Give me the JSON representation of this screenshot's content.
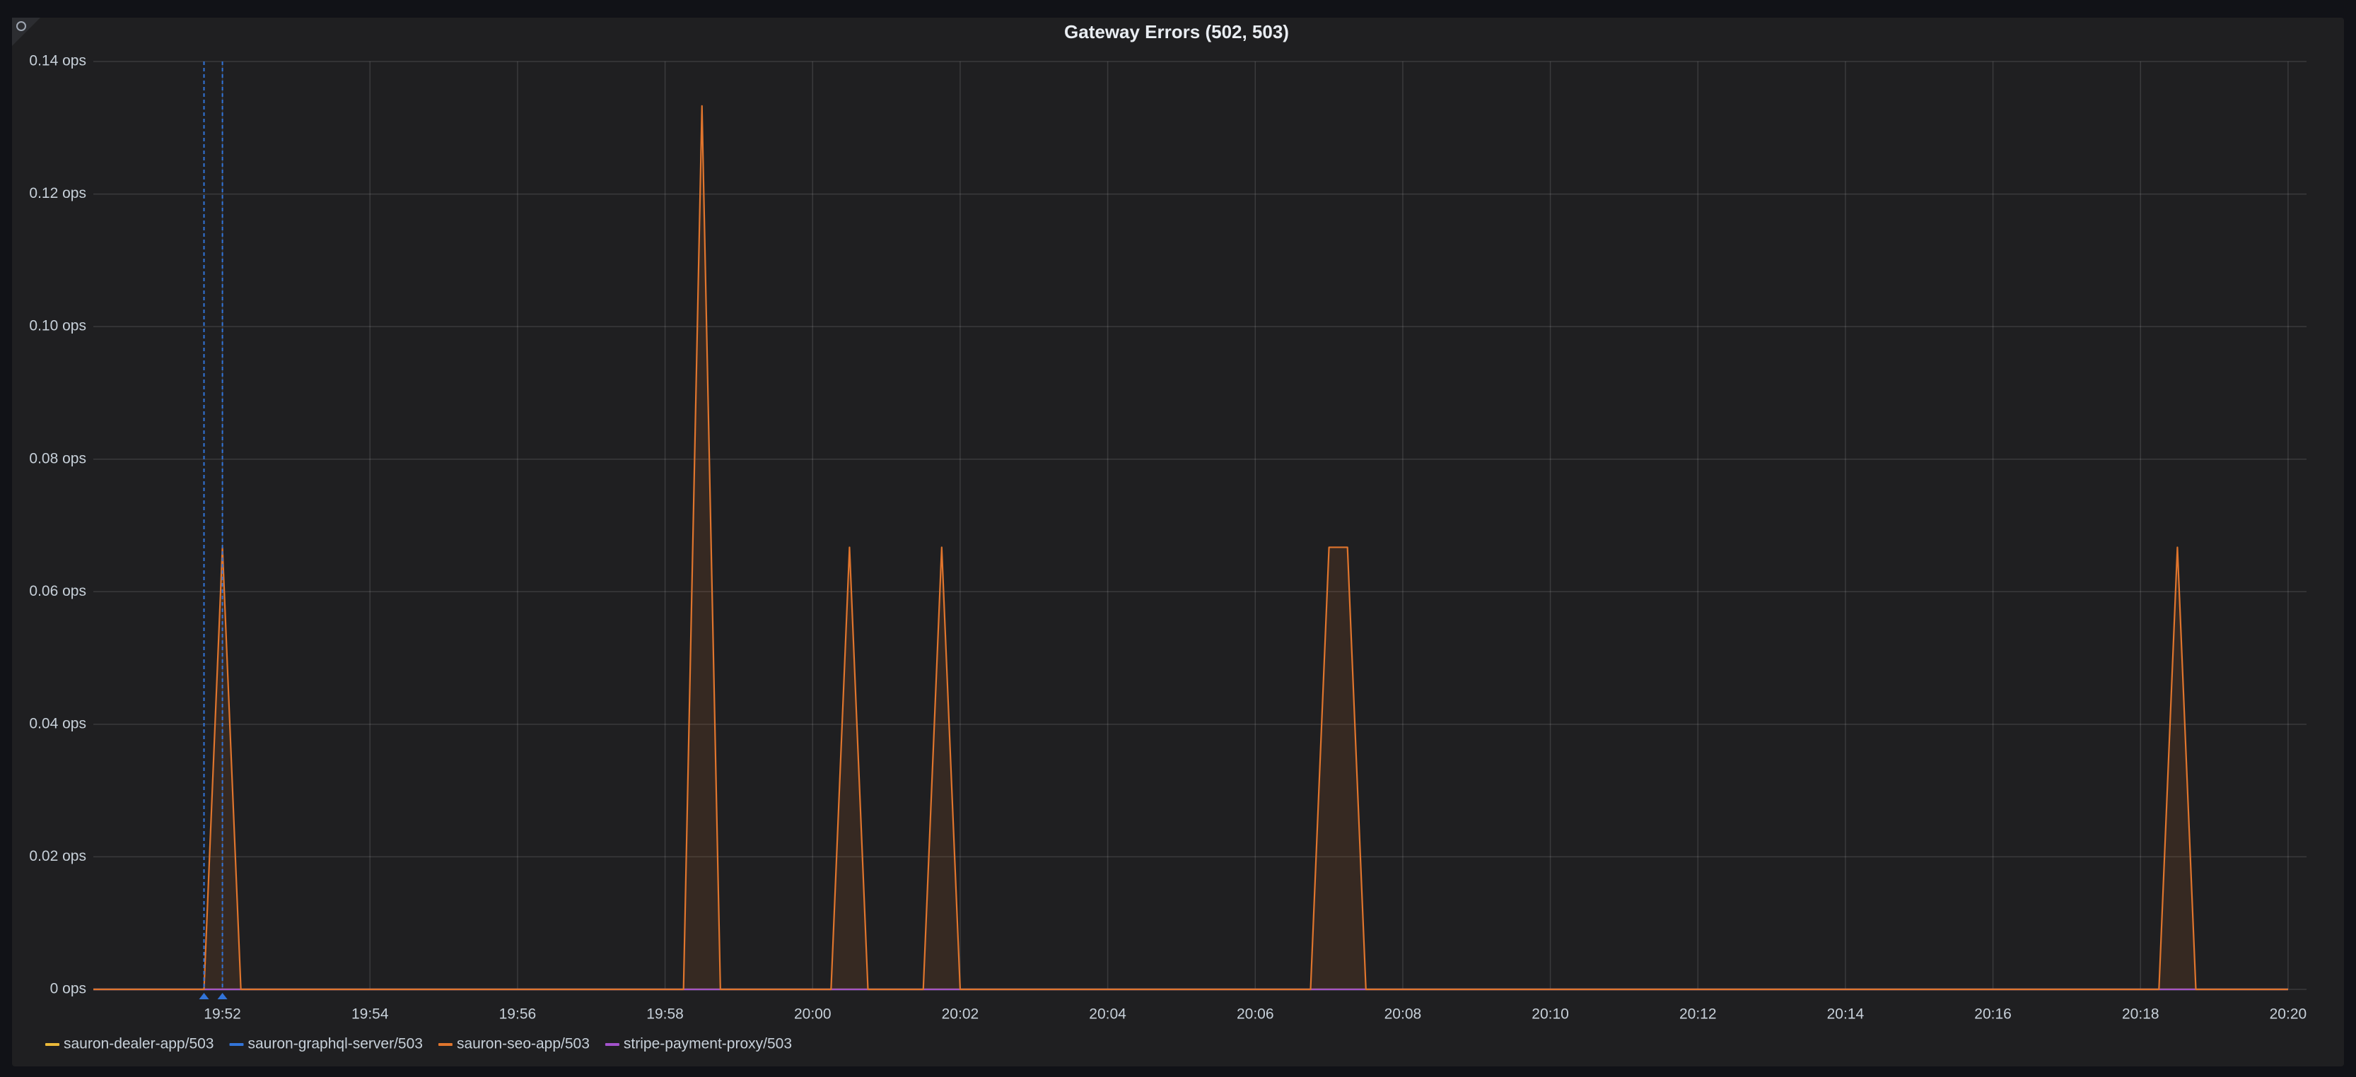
{
  "chart_data": {
    "type": "line",
    "title": "Gateway Errors (502, 503)",
    "x": [
      "19:50:15",
      "19:51:45",
      "19:52:00",
      "19:52:15",
      "19:58:15",
      "19:58:30",
      "19:58:45",
      "20:00:15",
      "20:00:30",
      "20:00:45",
      "20:01:30",
      "20:01:45",
      "20:02:00",
      "20:06:45",
      "20:07:00",
      "20:07:15",
      "20:07:30",
      "20:18:15",
      "20:18:30",
      "20:18:45",
      "20:20:00"
    ],
    "series": [
      {
        "name": "sauron-dealer-app/503",
        "color": "#eab839",
        "values": [
          0,
          0,
          0,
          0,
          0,
          0,
          0,
          0,
          0,
          0,
          0,
          0,
          0,
          0,
          0,
          0,
          0,
          0,
          0,
          0,
          0
        ]
      },
      {
        "name": "sauron-graphql-server/503",
        "color": "#3274d9",
        "values": [
          0,
          0,
          0,
          0,
          0,
          0,
          0,
          0,
          0,
          0,
          0,
          0,
          0,
          0,
          0,
          0,
          0,
          0,
          0,
          0,
          0
        ]
      },
      {
        "name": "sauron-seo-app/503",
        "color": "#e0752d",
        "fill": true,
        "values": [
          0,
          0,
          0.0667,
          0,
          0,
          0.1333,
          0,
          0,
          0.0667,
          0,
          0,
          0.0667,
          0,
          0,
          0.0667,
          0.0667,
          0,
          0,
          0.0667,
          0,
          0
        ]
      },
      {
        "name": "stripe-payment-proxy/503",
        "color": "#a352cc",
        "values": [
          0,
          0,
          0,
          0,
          0,
          0,
          0,
          0,
          0,
          0,
          0,
          0,
          0,
          0,
          0,
          0,
          0,
          0,
          0,
          0,
          0
        ]
      }
    ],
    "xlim": [
      "19:50:15",
      "20:20:15"
    ],
    "xticks": [
      "19:52",
      "19:54",
      "19:56",
      "19:58",
      "20:00",
      "20:02",
      "20:04",
      "20:06",
      "20:08",
      "20:10",
      "20:12",
      "20:14",
      "20:16",
      "20:18",
      "20:20"
    ],
    "ylim": [
      0,
      0.14
    ],
    "yticks": [
      {
        "value": 0,
        "label": "0 ops"
      },
      {
        "value": 0.02,
        "label": "0.02 ops"
      },
      {
        "value": 0.04,
        "label": "0.04 ops"
      },
      {
        "value": 0.06,
        "label": "0.06 ops"
      },
      {
        "value": 0.08,
        "label": "0.08 ops"
      },
      {
        "value": 0.1,
        "label": "0.10 ops"
      },
      {
        "value": 0.12,
        "label": "0.12 ops"
      },
      {
        "value": 0.14,
        "label": "0.14 ops"
      }
    ],
    "annotations": [
      "19:51:45",
      "19:52:00"
    ],
    "annotation_color": "#3274d9",
    "grid": true,
    "legend": "bottom-left"
  }
}
